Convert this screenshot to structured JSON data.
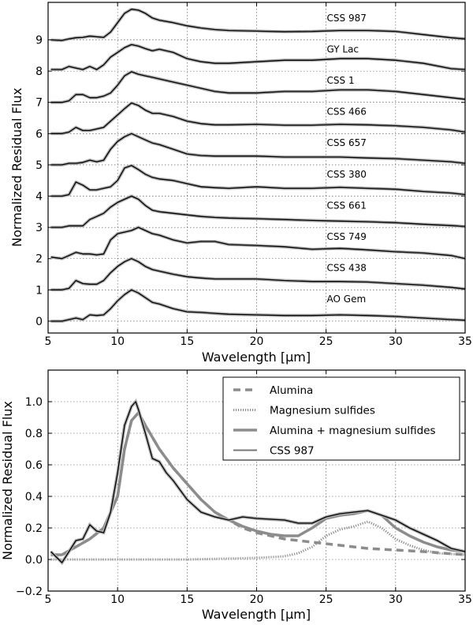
{
  "chart_data": [
    {
      "type": "line",
      "title": "",
      "xlabel": "Wavelength [μm]",
      "ylabel": "Normalized Residual Flux",
      "xlim": [
        5,
        35
      ],
      "ylim": [
        -0.38,
        10.2
      ],
      "xticks": [
        "5",
        "10",
        "15",
        "20",
        "25",
        "30",
        "35"
      ],
      "yticks": [
        "0",
        "1",
        "2",
        "3",
        "4",
        "5",
        "6",
        "7",
        "8",
        "9"
      ],
      "grid": true,
      "x": [
        5.2,
        6,
        6.5,
        7,
        7.5,
        8,
        8.5,
        9,
        9.5,
        10,
        10.5,
        11,
        11.5,
        12,
        12.5,
        13,
        14,
        15,
        16,
        17,
        18,
        20,
        22,
        24,
        26,
        28,
        30,
        32,
        34,
        35
      ],
      "series": [
        {
          "name": "CSS 987",
          "offset": 9,
          "values": [
            0,
            -0.02,
            0.03,
            0.07,
            0.08,
            0.12,
            0.1,
            0.08,
            0.25,
            0.55,
            0.85,
            0.98,
            0.95,
            0.85,
            0.7,
            0.63,
            0.55,
            0.45,
            0.38,
            0.33,
            0.3,
            0.28,
            0.26,
            0.27,
            0.3,
            0.3,
            0.27,
            0.17,
            0.07,
            0.03
          ]
        },
        {
          "name": "GY Lac",
          "offset": 8,
          "values": [
            0.05,
            0.05,
            0.15,
            0.1,
            0.05,
            0.15,
            0.05,
            0.2,
            0.45,
            0.6,
            0.75,
            0.85,
            0.8,
            0.72,
            0.65,
            0.7,
            0.6,
            0.4,
            0.3,
            0.25,
            0.25,
            0.3,
            0.35,
            0.35,
            0.4,
            0.4,
            0.35,
            0.25,
            0.08,
            0.05
          ]
        },
        {
          "name": "CSS 1",
          "offset": 7,
          "values": [
            0,
            0,
            0.05,
            0.25,
            0.25,
            0.15,
            0.15,
            0.2,
            0.3,
            0.55,
            0.85,
            0.98,
            0.9,
            0.85,
            0.8,
            0.75,
            0.65,
            0.55,
            0.45,
            0.35,
            0.3,
            0.3,
            0.35,
            0.35,
            0.4,
            0.4,
            0.35,
            0.25,
            0.15,
            0.1
          ]
        },
        {
          "name": "CSS 466",
          "offset": 6,
          "values": [
            0,
            0,
            0.05,
            0.2,
            0.1,
            0.1,
            0.15,
            0.2,
            0.4,
            0.6,
            0.8,
            0.98,
            0.9,
            0.75,
            0.65,
            0.65,
            0.55,
            0.4,
            0.32,
            0.28,
            0.28,
            0.3,
            0.27,
            0.27,
            0.3,
            0.28,
            0.25,
            0.2,
            0.12,
            0.05
          ]
        },
        {
          "name": "CSS 657",
          "offset": 5,
          "values": [
            0,
            0,
            0.05,
            0.05,
            0.08,
            0.15,
            0.1,
            0.15,
            0.5,
            0.75,
            0.9,
            1.0,
            0.9,
            0.8,
            0.7,
            0.65,
            0.5,
            0.35,
            0.3,
            0.28,
            0.28,
            0.28,
            0.25,
            0.25,
            0.25,
            0.22,
            0.2,
            0.15,
            0.1,
            0.05
          ]
        },
        {
          "name": "CSS 380",
          "offset": 4,
          "values": [
            0,
            0,
            0.05,
            0.45,
            0.35,
            0.2,
            0.2,
            0.25,
            0.3,
            0.5,
            0.9,
            0.98,
            0.85,
            0.7,
            0.6,
            0.55,
            0.5,
            0.4,
            0.3,
            0.27,
            0.25,
            0.3,
            0.25,
            0.25,
            0.28,
            0.25,
            0.22,
            0.15,
            0.1,
            0.05
          ]
        },
        {
          "name": "CSS 661",
          "offset": 3,
          "values": [
            0,
            0,
            0.05,
            0.05,
            0.05,
            0.25,
            0.35,
            0.45,
            0.65,
            0.8,
            0.9,
            1.0,
            0.9,
            0.7,
            0.55,
            0.5,
            0.45,
            0.4,
            0.35,
            0.32,
            0.3,
            0.28,
            0.25,
            0.22,
            0.2,
            0.18,
            0.15,
            0.1,
            0.06,
            0.03
          ]
        },
        {
          "name": "CSS 749",
          "offset": 2,
          "values": [
            0.05,
            0,
            0.1,
            0.2,
            0.15,
            0.15,
            0.12,
            0.15,
            0.6,
            0.8,
            0.85,
            0.9,
            1.0,
            0.9,
            0.8,
            0.75,
            0.6,
            0.5,
            0.55,
            0.55,
            0.45,
            0.42,
            0.38,
            0.3,
            0.33,
            0.28,
            0.22,
            0.18,
            0.1,
            0
          ]
        },
        {
          "name": "CSS 438",
          "offset": 1,
          "values": [
            0,
            0,
            0.05,
            0.3,
            0.2,
            0.18,
            0.18,
            0.3,
            0.55,
            0.75,
            0.9,
            1.0,
            0.9,
            0.75,
            0.65,
            0.6,
            0.5,
            0.42,
            0.38,
            0.35,
            0.35,
            0.35,
            0.3,
            0.27,
            0.27,
            0.25,
            0.2,
            0.15,
            0.08,
            0.03
          ]
        },
        {
          "name": "AO Gem",
          "offset": 0,
          "values": [
            0,
            0,
            0.05,
            0.1,
            0.05,
            0.2,
            0.18,
            0.2,
            0.4,
            0.65,
            0.85,
            1.0,
            0.9,
            0.75,
            0.6,
            0.55,
            0.4,
            0.3,
            0.28,
            0.25,
            0.22,
            0.2,
            0.18,
            0.18,
            0.2,
            0.18,
            0.15,
            0.1,
            0.05,
            0.03
          ]
        }
      ]
    },
    {
      "type": "line",
      "title": "",
      "xlabel": "Wavelength [μm]",
      "ylabel": "Normalized Residual Flux",
      "xlim": [
        5,
        35
      ],
      "ylim": [
        -0.2,
        1.2
      ],
      "xticks": [
        "5",
        "10",
        "15",
        "20",
        "25",
        "30",
        "35"
      ],
      "yticks": [
        "−0.2",
        "0.0",
        "0.2",
        "0.4",
        "0.6",
        "0.8",
        "1.0"
      ],
      "grid": true,
      "legend_position": "top-right",
      "series": [
        {
          "name": "Alumina",
          "style": "dashed",
          "color": "#8c8c8c",
          "x": [
            5.2,
            6,
            7,
            8,
            9,
            10,
            10.5,
            11,
            11.5,
            12,
            13,
            14,
            15,
            16,
            17,
            18,
            19,
            20,
            22,
            24,
            26,
            28,
            30,
            32,
            35
          ],
          "y": [
            0.03,
            0.03,
            0.08,
            0.13,
            0.2,
            0.4,
            0.7,
            0.88,
            0.93,
            0.85,
            0.7,
            0.58,
            0.48,
            0.38,
            0.3,
            0.25,
            0.2,
            0.17,
            0.13,
            0.11,
            0.09,
            0.07,
            0.06,
            0.05,
            0.03
          ]
        },
        {
          "name": "Magnesium sulfides",
          "style": "dotted",
          "color": "#8c8c8c",
          "x": [
            5.2,
            10,
            15,
            20,
            22,
            23,
            24,
            25,
            26,
            27,
            28,
            29,
            30,
            31,
            32,
            33,
            35
          ],
          "y": [
            0,
            0,
            0,
            0.01,
            0.02,
            0.04,
            0.08,
            0.15,
            0.19,
            0.21,
            0.24,
            0.2,
            0.13,
            0.09,
            0.06,
            0.04,
            0.03
          ]
        },
        {
          "name": "Alumina + magnesium sulfides",
          "style": "solid-thick",
          "color": "#8c8c8c",
          "x": [
            5.2,
            6,
            7,
            8,
            9,
            10,
            10.5,
            11,
            11.5,
            12,
            13,
            14,
            15,
            16,
            17,
            18,
            19,
            20,
            21,
            22,
            23,
            24,
            25,
            26,
            27,
            28,
            29,
            30,
            31,
            32,
            33,
            34,
            35
          ],
          "y": [
            0.03,
            0.03,
            0.08,
            0.13,
            0.2,
            0.4,
            0.7,
            0.88,
            0.93,
            0.85,
            0.7,
            0.58,
            0.48,
            0.38,
            0.3,
            0.25,
            0.21,
            0.18,
            0.16,
            0.15,
            0.15,
            0.2,
            0.26,
            0.28,
            0.29,
            0.31,
            0.28,
            0.2,
            0.15,
            0.11,
            0.08,
            0.06,
            0.05
          ]
        },
        {
          "name": "CSS 987",
          "style": "solid-thin",
          "color": "#000000",
          "x": [
            5.2,
            6,
            6.5,
            7,
            7.5,
            8,
            8.5,
            9,
            9.5,
            10,
            10.5,
            11,
            11.3,
            11.5,
            12,
            12.5,
            13,
            13.5,
            14,
            15,
            16,
            17,
            18,
            19,
            20,
            22,
            23,
            24,
            25,
            26,
            27,
            28,
            29,
            30,
            31,
            32,
            33,
            34,
            35
          ],
          "y": [
            0.05,
            -0.02,
            0.05,
            0.12,
            0.13,
            0.22,
            0.18,
            0.17,
            0.3,
            0.55,
            0.85,
            0.97,
            1.0,
            0.95,
            0.8,
            0.64,
            0.62,
            0.55,
            0.5,
            0.38,
            0.3,
            0.27,
            0.25,
            0.27,
            0.26,
            0.25,
            0.23,
            0.23,
            0.27,
            0.29,
            0.3,
            0.31,
            0.28,
            0.25,
            0.2,
            0.16,
            0.12,
            0.07,
            0.05
          ]
        }
      ]
    }
  ]
}
